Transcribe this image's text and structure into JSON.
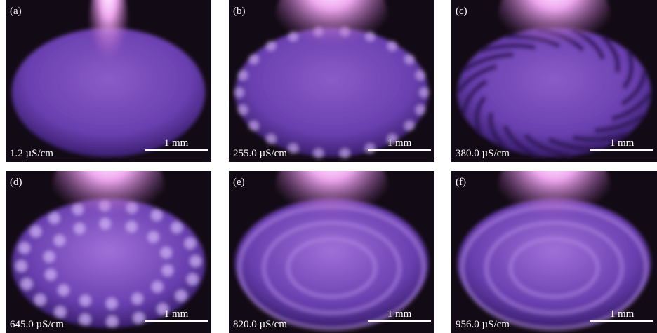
{
  "panels": [
    {
      "label": "(a)",
      "conductivity": "1.2 µS/cm",
      "scale": "1 mm"
    },
    {
      "label": "(b)",
      "conductivity": "255.0 µS/cm",
      "scale": "1 mm"
    },
    {
      "label": "(c)",
      "conductivity": "380.0 µS/cm",
      "scale": "1 mm"
    },
    {
      "label": "(d)",
      "conductivity": "645.0 µS/cm",
      "scale": "1 mm"
    },
    {
      "label": "(e)",
      "conductivity": "820.0 µS/cm",
      "scale": "1 mm"
    },
    {
      "label": "(f)",
      "conductivity": "956.0 µS/cm",
      "scale": "1 mm"
    }
  ]
}
